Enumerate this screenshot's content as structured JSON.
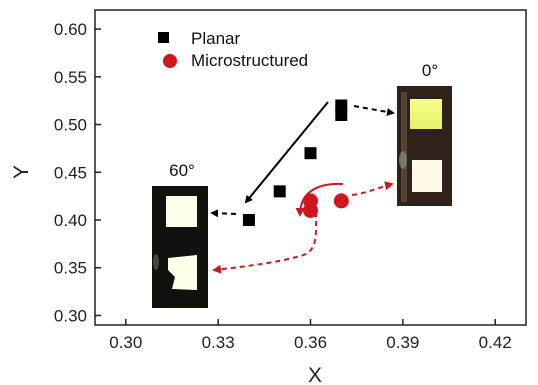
{
  "chart_data": {
    "type": "scatter",
    "xlabel": "X",
    "ylabel": "Y",
    "xlim": [
      0.29,
      0.43
    ],
    "ylim": [
      0.29,
      0.62
    ],
    "xticks": [
      "0.30",
      "0.33",
      "0.36",
      "0.39",
      "0.42"
    ],
    "yticks": [
      "0.30",
      "0.35",
      "0.40",
      "0.45",
      "0.50",
      "0.55",
      "0.60"
    ],
    "grid": false,
    "legend_position": "top-left",
    "series": [
      {
        "name": "Planar",
        "marker": "square",
        "color": "#000000",
        "points": [
          [
            0.34,
            0.4
          ],
          [
            0.35,
            0.43
          ],
          [
            0.36,
            0.47
          ],
          [
            0.37,
            0.51
          ],
          [
            0.37,
            0.52
          ]
        ]
      },
      {
        "name": "Microstructured",
        "marker": "circle",
        "color": "#d0171c",
        "points": [
          [
            0.36,
            0.41
          ],
          [
            0.36,
            0.42
          ],
          [
            0.37,
            0.42
          ]
        ]
      }
    ],
    "annotations": [
      {
        "text": "0°"
      },
      {
        "text": "60°"
      }
    ]
  }
}
